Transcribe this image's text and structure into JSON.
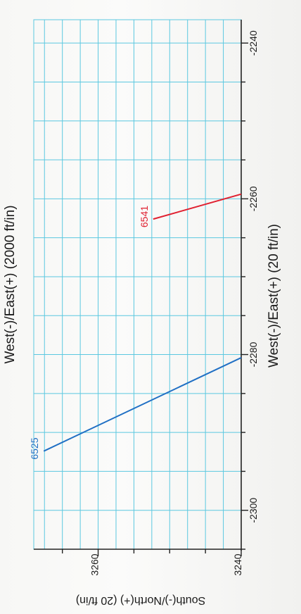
{
  "chart_data": {
    "type": "line",
    "title": "",
    "top_axis_title": "West(-)/East(+) (2000 ft/in)",
    "xlabel": "West(-)/East(+) (20 ft/in)",
    "ylabel": "South(-)/North(+) (20 ft/in)",
    "xlim": [
      -2305,
      -2237
    ],
    "ylim": [
      3240,
      3269
    ],
    "x_ticks": [
      -2300,
      -2280,
      -2260,
      -2240
    ],
    "x_tick_labels": [
      "-2300",
      "-2280",
      "-2260",
      "-2240"
    ],
    "y_ticks": [
      3240,
      3260
    ],
    "y_tick_labels": [
      "3240",
      "3260"
    ],
    "grid": true,
    "series": [
      {
        "name": "6525",
        "color": "#1f6fc4",
        "points": [
          {
            "x": -2280.4,
            "y": 3240.0
          },
          {
            "x": -2292.4,
            "y": 3267.6
          }
        ]
      },
      {
        "name": "6541",
        "color": "#e02030",
        "points": [
          {
            "x": -2259.4,
            "y": 3240.0
          },
          {
            "x": -2262.6,
            "y": 3252.3
          }
        ]
      }
    ]
  },
  "colors": {
    "grid": "#5bc8e0",
    "axis": "#222222"
  }
}
